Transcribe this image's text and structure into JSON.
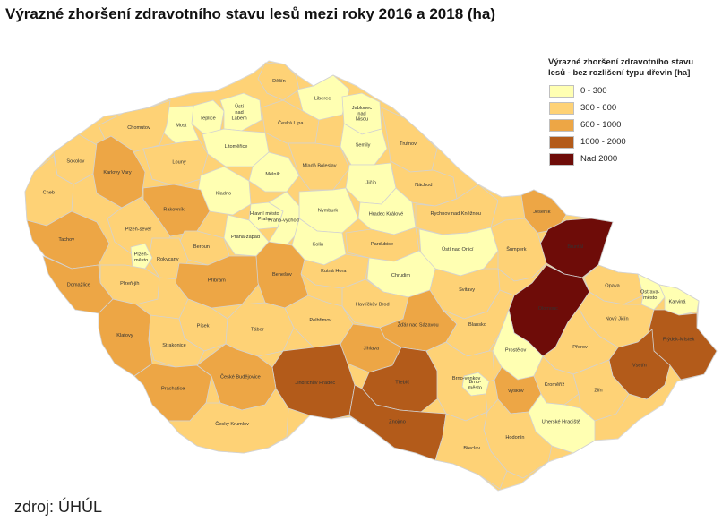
{
  "title": "Výrazné zhoršení zdravotního stavu lesů mezi roky 2016 a 2018 (ha)",
  "source": "zdroj: ÚHÚL",
  "legend": {
    "title_line1": "Výrazné zhoršení zdravotního stavu",
    "title_line2": "lesů - bez rozlišení typu dřevin",
    "unit": "[ha]",
    "classes": [
      {
        "label": "0 - 300",
        "color": "#ffffb2"
      },
      {
        "label": "300 - 600",
        "color": "#fed276"
      },
      {
        "label": "600 - 1000",
        "color": "#eda645"
      },
      {
        "label": "1000 - 2000",
        "color": "#b35b1a"
      },
      {
        "label": "Nad 2000",
        "color": "#6e0c08"
      }
    ]
  },
  "districts": [
    {
      "name": "Děčín",
      "cls": 1
    },
    {
      "name": "Teplice",
      "cls": 0
    },
    {
      "name": "Ústí nad Labem",
      "cls": 0
    },
    {
      "name": "Liberec",
      "cls": 0
    },
    {
      "name": "Jablonec nad Nisou",
      "cls": 0
    },
    {
      "name": "Most",
      "cls": 0
    },
    {
      "name": "Česká Lípa",
      "cls": 1
    },
    {
      "name": "Chomutov",
      "cls": 1
    },
    {
      "name": "Litoměřice",
      "cls": 0
    },
    {
      "name": "Semily",
      "cls": 0
    },
    {
      "name": "Trutnov",
      "cls": 1
    },
    {
      "name": "Sokolov",
      "cls": 1
    },
    {
      "name": "Karlovy Vary",
      "cls": 2
    },
    {
      "name": "Louny",
      "cls": 1
    },
    {
      "name": "Mělník",
      "cls": 0
    },
    {
      "name": "Mladá Boleslav",
      "cls": 1
    },
    {
      "name": "Jičín",
      "cls": 0
    },
    {
      "name": "Náchod",
      "cls": 1
    },
    {
      "name": "Cheb",
      "cls": 1
    },
    {
      "name": "Kladno",
      "cls": 0
    },
    {
      "name": "Rakovník",
      "cls": 2
    },
    {
      "name": "Hradec Králové",
      "cls": 0
    },
    {
      "name": "Nymburk",
      "cls": 0
    },
    {
      "name": "Jeseník",
      "cls": 2
    },
    {
      "name": "Hlavní město Praha",
      "cls": 0
    },
    {
      "name": "Praha-západ",
      "cls": 0
    },
    {
      "name": "Praha-východ",
      "cls": 0
    },
    {
      "name": "Rychnov nad Kněžnou",
      "cls": 1
    },
    {
      "name": "Plzeň-sever",
      "cls": 1
    },
    {
      "name": "Beroun",
      "cls": 1
    },
    {
      "name": "Kolín",
      "cls": 0
    },
    {
      "name": "Tachov",
      "cls": 2
    },
    {
      "name": "Rokycany",
      "cls": 1
    },
    {
      "name": "Pardubice",
      "cls": 1
    },
    {
      "name": "Bruntál",
      "cls": 4
    },
    {
      "name": "Kutná Hora",
      "cls": 1
    },
    {
      "name": "Ústí nad Orlicí",
      "cls": 0
    },
    {
      "name": "Šumperk",
      "cls": 1
    },
    {
      "name": "Plzeň-město",
      "cls": 0
    },
    {
      "name": "Plzeň-jih",
      "cls": 1
    },
    {
      "name": "Příbram",
      "cls": 2
    },
    {
      "name": "Benešov",
      "cls": 2
    },
    {
      "name": "Chrudim",
      "cls": 0
    },
    {
      "name": "Opava",
      "cls": 1
    },
    {
      "name": "Domažlice",
      "cls": 2
    },
    {
      "name": "Havlíčkův Brod",
      "cls": 1
    },
    {
      "name": "Svitavy",
      "cls": 1
    },
    {
      "name": "Ostrava-město",
      "cls": 0
    },
    {
      "name": "Karviná",
      "cls": 0
    },
    {
      "name": "Olomouc",
      "cls": 4
    },
    {
      "name": "Písek",
      "cls": 1
    },
    {
      "name": "Žďár nad Sázavou",
      "cls": 2
    },
    {
      "name": "Klatovy",
      "cls": 2
    },
    {
      "name": "Strakonice",
      "cls": 1
    },
    {
      "name": "Tábor",
      "cls": 1
    },
    {
      "name": "Pelhřimov",
      "cls": 1
    },
    {
      "name": "Nový Jičín",
      "cls": 1
    },
    {
      "name": "Frýdek-Místek",
      "cls": 3
    },
    {
      "name": "Blansko",
      "cls": 1
    },
    {
      "name": "Prostějov",
      "cls": 0
    },
    {
      "name": "Jihlava",
      "cls": 2
    },
    {
      "name": "Přerov",
      "cls": 1
    },
    {
      "name": "Vsetín",
      "cls": 3
    },
    {
      "name": "Prachatice",
      "cls": 2
    },
    {
      "name": "Jindřichův Hradec",
      "cls": 3
    },
    {
      "name": "Třebíč",
      "cls": 3
    },
    {
      "name": "Brno-město",
      "cls": 0
    },
    {
      "name": "Vyškov",
      "cls": 2
    },
    {
      "name": "Kroměříž",
      "cls": 1
    },
    {
      "name": "České Budějovice",
      "cls": 2
    },
    {
      "name": "Brno-venkov",
      "cls": 1
    },
    {
      "name": "Zlín",
      "cls": 1
    },
    {
      "name": "Uherské Hradiště",
      "cls": 0
    },
    {
      "name": "Znojmo",
      "cls": 3
    },
    {
      "name": "Hodonín",
      "cls": 1
    },
    {
      "name": "Český Krumlov",
      "cls": 1
    },
    {
      "name": "Břeclav",
      "cls": 1
    }
  ]
}
